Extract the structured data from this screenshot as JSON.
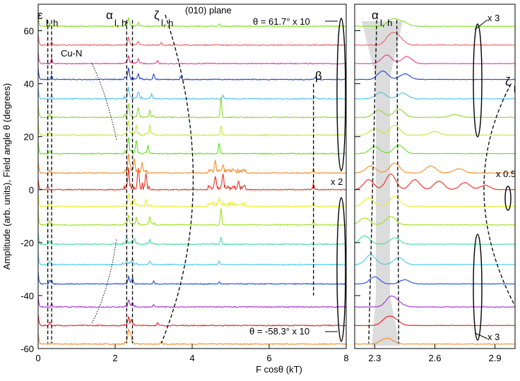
{
  "chart_data": {
    "type": "line",
    "figure_title": "(010) plane",
    "ylabel": "Amplitude (arb. units), Field angle θ (degrees)",
    "xlabel": "F cosθ (kT)",
    "panels": [
      {
        "name": "full-spectrum",
        "xlim": [
          0,
          8
        ],
        "ylim": [
          -60,
          70
        ],
        "x_ticks": [
          0,
          2,
          4,
          6,
          8
        ],
        "y_ticks": [
          -60,
          -40,
          -20,
          0,
          20,
          40,
          60
        ],
        "annotations": {
          "epsilon": "ε",
          "epsilon_sub": "l, h",
          "alpha": "α",
          "alpha_sub": "l, h",
          "zeta": "ζ",
          "zeta_sub": "l, h",
          "beta": "β",
          "cu_n": "Cu-N",
          "top_angle": "θ = 61.7°  x 10",
          "bottom_angle": "θ = -58.3°  x 10",
          "scale_mid": "x 2"
        },
        "branches": [
          {
            "name": "epsilon_l",
            "x_at_bottom": 0.25,
            "x_at_top": 0.25
          },
          {
            "name": "epsilon_h",
            "x_at_bottom": 0.35,
            "x_at_top": 0.35
          },
          {
            "name": "alpha_l",
            "x_at_bottom": 2.3,
            "x_at_top": 2.3
          },
          {
            "name": "alpha_h",
            "x_at_bottom": 2.45,
            "x_at_top": 2.45
          },
          {
            "name": "zeta",
            "x_at_bottom": 3.2,
            "x_at_top": 3.3,
            "x_max": 4.4
          },
          {
            "name": "beta",
            "x_at_bottom": 7.15,
            "x_at_top": 7.15
          }
        ]
      },
      {
        "name": "alpha-zoom",
        "xlim": [
          2.2,
          3.0
        ],
        "ylim": [
          -60,
          70
        ],
        "x_ticks": [
          2.3,
          2.6,
          2.9
        ],
        "annotations": {
          "alpha": "α",
          "alpha_sub": "l, h",
          "zeta": "ζ",
          "zeta_sub": "l",
          "scale_top": "x 3",
          "scale_mid": "x 0.5",
          "scale_bottom": "x 3"
        }
      }
    ],
    "series": [
      {
        "angle": -58.3,
        "color": "#f08c28",
        "left_peaks": [
          [
            0.35,
            3
          ],
          [
            2.35,
            18
          ],
          [
            2.4,
            10
          ],
          [
            3.2,
            3
          ]
        ],
        "right_peaks": [
          [
            2.35,
            6
          ],
          [
            2.38,
            4
          ]
        ]
      },
      {
        "angle": -51.3,
        "color": "#e81e1e",
        "left_peaks": [
          [
            0.3,
            5
          ],
          [
            2.35,
            10
          ],
          [
            2.42,
            8
          ],
          [
            3.1,
            4
          ]
        ],
        "right_peaks": [
          [
            2.36,
            10
          ],
          [
            2.4,
            8
          ]
        ]
      },
      {
        "angle": -44.3,
        "color": "#a030d0",
        "left_peaks": [
          [
            0.35,
            4
          ],
          [
            2.35,
            8
          ],
          [
            2.45,
            6
          ],
          [
            3.0,
            3
          ]
        ],
        "right_peaks": [
          [
            2.38,
            14
          ],
          [
            2.42,
            5
          ]
        ]
      },
      {
        "angle": -35.6,
        "color": "#2050d8",
        "left_peaks": [
          [
            0.3,
            6
          ],
          [
            0.35,
            5
          ],
          [
            2.35,
            9
          ],
          [
            2.45,
            7
          ],
          [
            3.0,
            4
          ],
          [
            4.7,
            3
          ]
        ],
        "right_peaks": [
          [
            2.3,
            10
          ],
          [
            2.45,
            6
          ]
        ]
      },
      {
        "angle": -28.3,
        "color": "#48c8e8",
        "left_peaks": [
          [
            0.3,
            5
          ],
          [
            2.3,
            9
          ],
          [
            2.45,
            8
          ],
          [
            2.9,
            4
          ],
          [
            4.7,
            5
          ]
        ],
        "right_peaks": [
          [
            2.28,
            14
          ],
          [
            2.42,
            10
          ]
        ]
      },
      {
        "angle": -20.6,
        "color": "#40e0a0",
        "left_peaks": [
          [
            0.3,
            5
          ],
          [
            2.3,
            10
          ],
          [
            2.5,
            8
          ],
          [
            2.9,
            6
          ],
          [
            4.75,
            10
          ]
        ],
        "right_peaks": [
          [
            2.25,
            12
          ],
          [
            2.4,
            9
          ]
        ]
      },
      {
        "angle": -13.3,
        "color": "#a0e020",
        "left_peaks": [
          [
            0.3,
            6
          ],
          [
            2.35,
            12
          ],
          [
            2.55,
            9
          ],
          [
            2.9,
            10
          ],
          [
            4.75,
            24
          ],
          [
            7.15,
            5
          ]
        ],
        "right_peaks": [
          [
            2.25,
            10
          ],
          [
            2.38,
            12
          ]
        ]
      },
      {
        "angle": -6.3,
        "color": "#e8f020",
        "left_peaks": [
          [
            0.3,
            5
          ],
          [
            2.35,
            16
          ],
          [
            2.5,
            10
          ],
          [
            2.8,
            8
          ],
          [
            4.7,
            8
          ],
          [
            7.15,
            4
          ]
        ],
        "right_peaks": [
          [
            2.27,
            12
          ],
          [
            2.4,
            14
          ]
        ]
      },
      {
        "angle": 0.0,
        "color": "#e83020",
        "left_peaks": [
          [
            0.25,
            5
          ],
          [
            2.35,
            30
          ],
          [
            2.6,
            28
          ],
          [
            2.8,
            20
          ],
          [
            4.6,
            18
          ],
          [
            4.8,
            20
          ],
          [
            5.2,
            10
          ],
          [
            7.15,
            8
          ]
        ],
        "right_peaks": [
          [
            2.27,
            14
          ],
          [
            2.38,
            22
          ],
          [
            2.5,
            14
          ],
          [
            2.62,
            12
          ],
          [
            2.75,
            10
          ],
          [
            2.85,
            6
          ]
        ]
      },
      {
        "angle": 6.3,
        "color": "#f09030",
        "left_peaks": [
          [
            0.3,
            4
          ],
          [
            2.35,
            26
          ],
          [
            2.5,
            20
          ],
          [
            2.7,
            16
          ],
          [
            4.6,
            14
          ],
          [
            4.8,
            10
          ],
          [
            7.15,
            6
          ]
        ],
        "right_peaks": [
          [
            2.28,
            10
          ],
          [
            2.4,
            14
          ],
          [
            2.58,
            10
          ],
          [
            2.72,
            6
          ]
        ]
      },
      {
        "angle": 13.6,
        "color": "#60e020",
        "left_peaks": [
          [
            0.3,
            4
          ],
          [
            2.35,
            22
          ],
          [
            2.55,
            16
          ],
          [
            2.85,
            10
          ],
          [
            4.7,
            16
          ]
        ],
        "right_peaks": [
          [
            2.3,
            10
          ],
          [
            2.42,
            12
          ]
        ]
      },
      {
        "angle": 20.6,
        "color": "#c0e840",
        "left_peaks": [
          [
            0.3,
            5
          ],
          [
            2.35,
            20
          ],
          [
            2.55,
            14
          ],
          [
            2.9,
            12
          ],
          [
            4.75,
            14
          ]
        ],
        "right_peaks": [
          [
            2.3,
            9
          ],
          [
            2.4,
            14
          ],
          [
            2.6,
            5
          ]
        ]
      },
      {
        "angle": 27.3,
        "color": "#90d830",
        "left_peaks": [
          [
            0.3,
            5
          ],
          [
            2.35,
            18
          ],
          [
            2.6,
            12
          ],
          [
            2.9,
            10
          ],
          [
            4.75,
            30
          ]
        ],
        "right_peaks": [
          [
            2.32,
            10
          ],
          [
            2.42,
            12
          ],
          [
            2.7,
            4
          ]
        ]
      },
      {
        "angle": 34.3,
        "color": "#50c0e8",
        "left_peaks": [
          [
            0.35,
            5
          ],
          [
            2.35,
            16
          ],
          [
            2.6,
            10
          ],
          [
            2.95,
            6
          ],
          [
            4.8,
            5
          ],
          [
            7.2,
            3
          ]
        ],
        "right_peaks": [
          [
            2.33,
            9
          ],
          [
            2.44,
            8
          ]
        ]
      },
      {
        "angle": 41.6,
        "color": "#2040d0",
        "left_peaks": [
          [
            0.35,
            6
          ],
          [
            2.35,
            14
          ],
          [
            2.6,
            8
          ],
          [
            3.0,
            8
          ],
          [
            3.7,
            4
          ],
          [
            7.2,
            4
          ]
        ],
        "right_peaks": [
          [
            2.34,
            12
          ],
          [
            2.45,
            8
          ]
        ]
      },
      {
        "angle": 47.6,
        "color": "#e04090",
        "left_peaks": [
          [
            0.35,
            8
          ],
          [
            2.35,
            12
          ],
          [
            2.6,
            6
          ],
          [
            3.1,
            5
          ]
        ],
        "right_peaks": [
          [
            2.36,
            12
          ],
          [
            2.46,
            10
          ]
        ]
      },
      {
        "angle": 54.6,
        "color": "#f06060",
        "left_peaks": [
          [
            0.35,
            5
          ],
          [
            2.35,
            10
          ],
          [
            2.6,
            5
          ],
          [
            3.2,
            3
          ]
        ],
        "right_peaks": [
          [
            2.38,
            14
          ],
          [
            2.42,
            10
          ]
        ]
      },
      {
        "angle": 61.7,
        "color": "#80e020",
        "left_peaks": [
          [
            0.3,
            4
          ],
          [
            2.35,
            10
          ],
          [
            2.6,
            4
          ],
          [
            3.3,
            3
          ],
          [
            4.7,
            3
          ]
        ],
        "right_peaks": [
          [
            2.39,
            10
          ],
          [
            2.44,
            6
          ]
        ]
      }
    ]
  }
}
